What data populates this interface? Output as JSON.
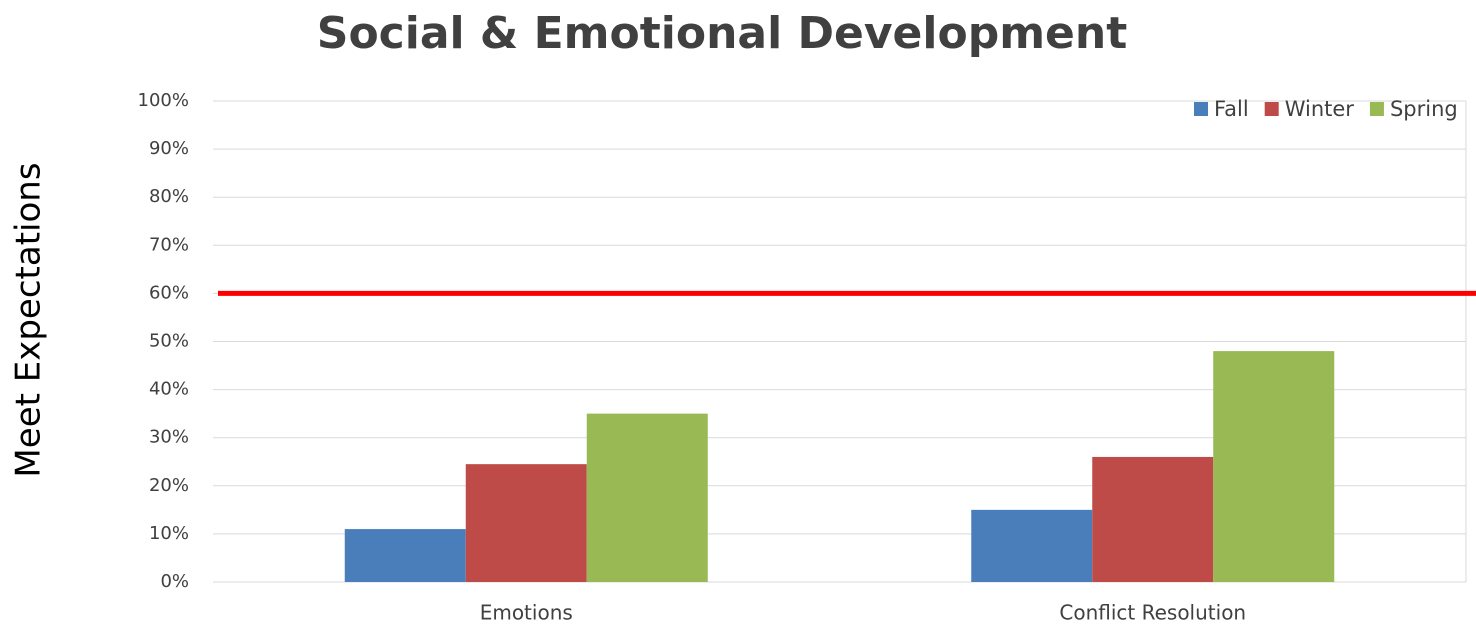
{
  "chart_data": {
    "type": "bar",
    "title": "Social & Emotional Development",
    "y_label": "Meet Expectations",
    "categories": [
      "Emotions",
      "Conflict Resolution"
    ],
    "series": [
      {
        "name": "Fall",
        "color": "#4a7ebb",
        "values": [
          11,
          15
        ]
      },
      {
        "name": "Winter",
        "color": "#be4b48",
        "values": [
          24.5,
          26
        ]
      },
      {
        "name": "Spring",
        "color": "#98b954",
        "values": [
          35,
          48
        ]
      }
    ],
    "target": 60,
    "target_color": "#ff0000",
    "ylim": [
      0,
      100
    ],
    "yticks": [
      {
        "value": 0,
        "label": "0%"
      },
      {
        "value": 10,
        "label": "10%"
      },
      {
        "value": 20,
        "label": "20%"
      },
      {
        "value": 30,
        "label": "30%"
      },
      {
        "value": 40,
        "label": "40%"
      },
      {
        "value": 50,
        "label": "50%"
      },
      {
        "value": 60,
        "label": "60%"
      },
      {
        "value": 70,
        "label": "70%"
      },
      {
        "value": 80,
        "label": "80%"
      },
      {
        "value": 90,
        "label": "90%"
      },
      {
        "value": 100,
        "label": "100%"
      }
    ],
    "grid": true,
    "legend": "top-right"
  }
}
